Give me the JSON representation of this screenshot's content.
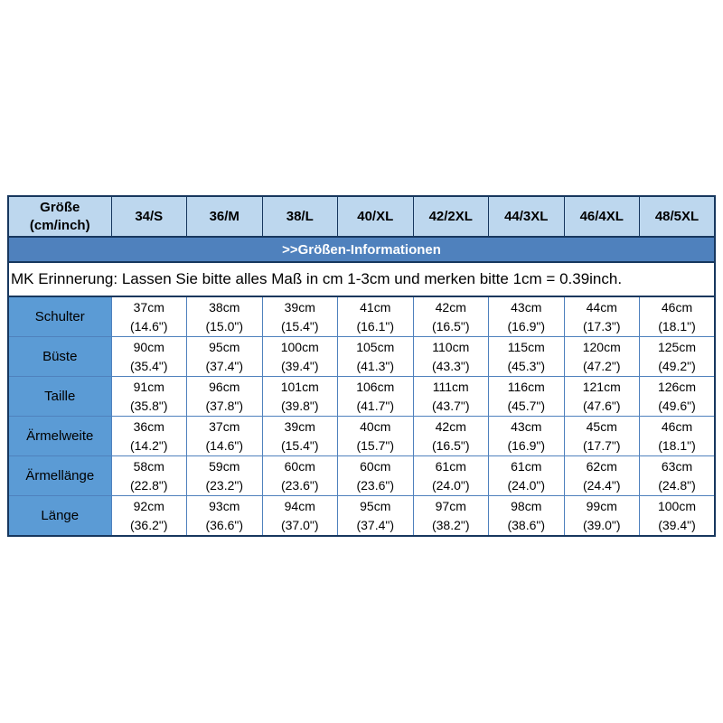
{
  "title_bar": {
    "label": ">>Größen-Informationen"
  },
  "note": {
    "text": "MK Erinnerung: Lassen Sie bitte alles Maß in cm 1-3cm und merken bitte 1cm = 0.39inch."
  },
  "table": {
    "columns": [
      "Größe\n(cm/inch)",
      "34/S",
      "36/M",
      "38/L",
      "40/XL",
      "42/2XL",
      "44/3XL",
      "46/4XL",
      "48/5XL"
    ],
    "rows": [
      {
        "label": "Schulter",
        "cells": [
          {
            "cm": "37cm",
            "inch": "(14.6\")"
          },
          {
            "cm": "38cm",
            "inch": "(15.0\")"
          },
          {
            "cm": "39cm",
            "inch": "(15.4\")"
          },
          {
            "cm": "41cm",
            "inch": "(16.1\")"
          },
          {
            "cm": "42cm",
            "inch": "(16.5\")"
          },
          {
            "cm": "43cm",
            "inch": "(16.9\")"
          },
          {
            "cm": "44cm",
            "inch": "(17.3\")"
          },
          {
            "cm": "46cm",
            "inch": "(18.1\")"
          }
        ]
      },
      {
        "label": "Büste",
        "cells": [
          {
            "cm": "90cm",
            "inch": "(35.4\")"
          },
          {
            "cm": "95cm",
            "inch": "(37.4\")"
          },
          {
            "cm": "100cm",
            "inch": "(39.4\")"
          },
          {
            "cm": "105cm",
            "inch": "(41.3\")"
          },
          {
            "cm": "110cm",
            "inch": "(43.3\")"
          },
          {
            "cm": "115cm",
            "inch": "(45.3\")"
          },
          {
            "cm": "120cm",
            "inch": "(47.2\")"
          },
          {
            "cm": "125cm",
            "inch": "(49.2\")"
          }
        ]
      },
      {
        "label": "Taille",
        "cells": [
          {
            "cm": "91cm",
            "inch": "(35.8\")"
          },
          {
            "cm": "96cm",
            "inch": "(37.8\")"
          },
          {
            "cm": "101cm",
            "inch": "(39.8\")"
          },
          {
            "cm": "106cm",
            "inch": "(41.7\")"
          },
          {
            "cm": "111cm",
            "inch": "(43.7\")"
          },
          {
            "cm": "116cm",
            "inch": "(45.7\")"
          },
          {
            "cm": "121cm",
            "inch": "(47.6\")"
          },
          {
            "cm": "126cm",
            "inch": "(49.6\")"
          }
        ]
      },
      {
        "label": "Ärmelweite",
        "cells": [
          {
            "cm": "36cm",
            "inch": "(14.2\")"
          },
          {
            "cm": "37cm",
            "inch": "(14.6\")"
          },
          {
            "cm": "39cm",
            "inch": "(15.4\")"
          },
          {
            "cm": "40cm",
            "inch": "(15.7\")"
          },
          {
            "cm": "42cm",
            "inch": "(16.5\")"
          },
          {
            "cm": "43cm",
            "inch": "(16.9\")"
          },
          {
            "cm": "45cm",
            "inch": "(17.7\")"
          },
          {
            "cm": "46cm",
            "inch": "(18.1\")"
          }
        ]
      },
      {
        "label": "Ärmellänge",
        "cells": [
          {
            "cm": "58cm",
            "inch": "(22.8\")"
          },
          {
            "cm": "59cm",
            "inch": "(23.2\")"
          },
          {
            "cm": "60cm",
            "inch": "(23.6\")"
          },
          {
            "cm": "60cm",
            "inch": "(23.6\")"
          },
          {
            "cm": "61cm",
            "inch": "(24.0\")"
          },
          {
            "cm": "61cm",
            "inch": "(24.0\")"
          },
          {
            "cm": "62cm",
            "inch": "(24.4\")"
          },
          {
            "cm": "63cm",
            "inch": "(24.8\")"
          }
        ]
      },
      {
        "label": "Länge",
        "cells": [
          {
            "cm": "92cm",
            "inch": "(36.2\")"
          },
          {
            "cm": "93cm",
            "inch": "(36.6\")"
          },
          {
            "cm": "94cm",
            "inch": "(37.0\")"
          },
          {
            "cm": "95cm",
            "inch": "(37.4\")"
          },
          {
            "cm": "97cm",
            "inch": "(38.2\")"
          },
          {
            "cm": "98cm",
            "inch": "(38.6\")"
          },
          {
            "cm": "99cm",
            "inch": "(39.0\")"
          },
          {
            "cm": "100cm",
            "inch": "(39.4\")"
          }
        ]
      }
    ]
  },
  "colors": {
    "title_bar_bg": "#4f81bd",
    "title_text": "#ffffff",
    "outer_border": "#17375e",
    "header_row_bg": "#bdd7ee",
    "label_column_bg": "#5b9bd5",
    "grid_line": "#4f81bd",
    "body_text": "#000000"
  }
}
